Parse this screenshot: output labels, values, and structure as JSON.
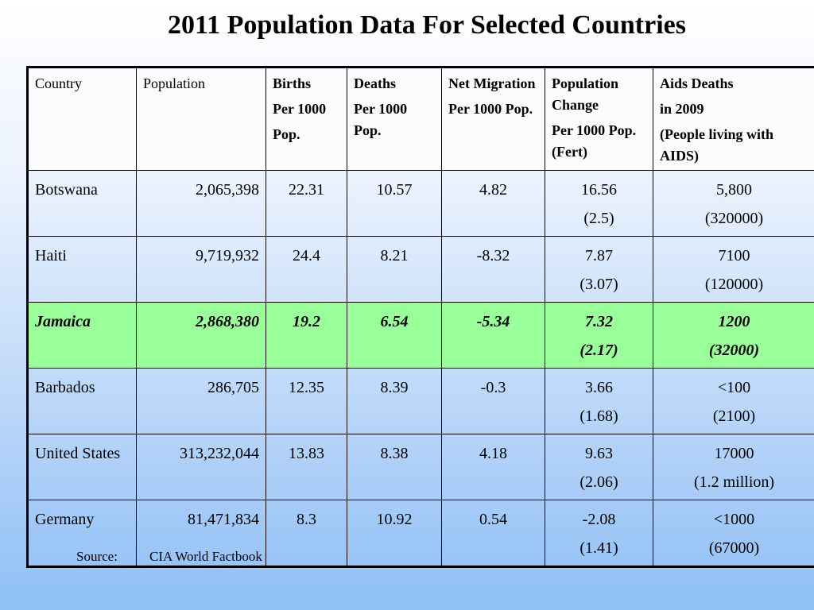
{
  "title": "2011 Population Data For Selected Countries",
  "headers": {
    "country": [
      "Country"
    ],
    "population": [
      "Population"
    ],
    "births": [
      "Births",
      "Per 1000",
      "Pop."
    ],
    "deaths": [
      "Deaths",
      "Per 1000 Pop."
    ],
    "net_migration": [
      "Net Migration",
      "Per 1000 Pop."
    ],
    "population_change": [
      "Population Change",
      "Per 1000 Pop. (Fert)"
    ],
    "aids_deaths": [
      "Aids Deaths",
      "in 2009",
      "(People living with AIDS)"
    ]
  },
  "rows": [
    {
      "country": "Botswana",
      "population": "2,065,398",
      "births": "22.31",
      "deaths": "10.57",
      "net_migration": "4.82",
      "pop_change": "16.56",
      "fert": "(2.5)",
      "aids_deaths": "5,800",
      "aids_living": "(320000)"
    },
    {
      "country": "Haiti",
      "population": "9,719,932",
      "births": "24.4",
      "deaths": "8.21",
      "net_migration": "-8.32",
      "pop_change": "7.87",
      "fert": "(3.07)",
      "aids_deaths": "7100",
      "aids_living": "(120000)"
    },
    {
      "country": "Jamaica",
      "population": "2,868,380",
      "births": "19.2",
      "deaths": "6.54",
      "net_migration": "-5.34",
      "pop_change": "7.32",
      "fert": "(2.17)",
      "aids_deaths": "1200",
      "aids_living": "(32000)"
    },
    {
      "country": "Barbados",
      "population": "286,705",
      "births": "12.35",
      "deaths": "8.39",
      "net_migration": "-0.3",
      "pop_change": "3.66",
      "fert": "(1.68)",
      "aids_deaths": "<100",
      "aids_living": "(2100)"
    },
    {
      "country": "United States",
      "population": "313,232,044",
      "births": "13.83",
      "deaths": "8.38",
      "net_migration": "4.18",
      "pop_change": "9.63",
      "fert": "(2.06)",
      "aids_deaths": "17000",
      "aids_living": "(1.2 million)"
    },
    {
      "country": "Germany",
      "population": "81,471,834",
      "births": "8.3",
      "deaths": "10.92",
      "net_migration": "0.54",
      "pop_change": "-2.08",
      "fert": "(1.41)",
      "aids_deaths": "<1000",
      "aids_living": "(67000)"
    }
  ],
  "highlight_color": "#99ff99",
  "source": {
    "label": "Source:",
    "text": "CIA World Factbook"
  }
}
